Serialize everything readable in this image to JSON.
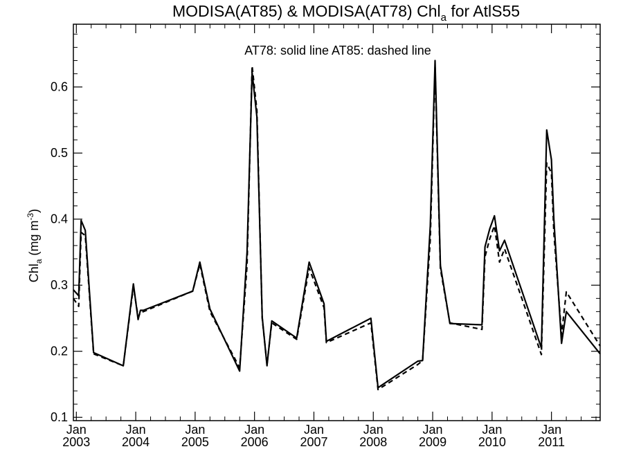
{
  "chart_data": {
    "type": "line",
    "title": {
      "prefix": "MODISA(AT85) & MODISA(AT78)  Chl",
      "subscript": "a",
      "suffix": " for AtlS55"
    },
    "ylabel": {
      "prefix": "Chl",
      "subscript": "a",
      "suffix": " (mg m",
      "superscript": "-3",
      "close": ")"
    },
    "annotation": "AT78: solid line   AT85: dashed line",
    "xlim": [
      2002.95,
      2011.82
    ],
    "ylim": [
      0.095,
      0.695
    ],
    "grid": false,
    "x_ticks": [
      {
        "value": 2003,
        "month": "Jan",
        "year": "2003"
      },
      {
        "value": 2004,
        "month": "Jan",
        "year": "2004"
      },
      {
        "value": 2005,
        "month": "Jan",
        "year": "2005"
      },
      {
        "value": 2006,
        "month": "Jan",
        "year": "2006"
      },
      {
        "value": 2007,
        "month": "Jan",
        "year": "2007"
      },
      {
        "value": 2008,
        "month": "Jan",
        "year": "2008"
      },
      {
        "value": 2009,
        "month": "Jan",
        "year": "2009"
      },
      {
        "value": 2010,
        "month": "Jan",
        "year": "2010"
      },
      {
        "value": 2011,
        "month": "Jan",
        "year": "2011"
      }
    ],
    "y_ticks": [
      {
        "value": 0.1,
        "label": "0.1"
      },
      {
        "value": 0.2,
        "label": "0.2"
      },
      {
        "value": 0.3,
        "label": "0.3"
      },
      {
        "value": 0.4,
        "label": "0.4"
      },
      {
        "value": 0.5,
        "label": "0.5"
      },
      {
        "value": 0.6,
        "label": "0.6"
      }
    ],
    "series": [
      {
        "dash": false,
        "color": "#000000",
        "points": [
          [
            2002.95,
            0.293
          ],
          [
            2003.04,
            0.284
          ],
          [
            2003.08,
            0.398
          ],
          [
            2003.15,
            0.383
          ],
          [
            2003.29,
            0.198
          ],
          [
            2003.79,
            0.178
          ],
          [
            2003.96,
            0.302
          ],
          [
            2004.04,
            0.248
          ],
          [
            2004.08,
            0.262
          ],
          [
            2004.13,
            0.262
          ],
          [
            2004.96,
            0.291
          ],
          [
            2005.08,
            0.335
          ],
          [
            2005.25,
            0.264
          ],
          [
            2005.75,
            0.17
          ],
          [
            2005.875,
            0.35
          ],
          [
            2005.96,
            0.622
          ],
          [
            2006.04,
            0.555
          ],
          [
            2006.13,
            0.252
          ],
          [
            2006.21,
            0.178
          ],
          [
            2006.29,
            0.246
          ],
          [
            2006.71,
            0.22
          ],
          [
            2006.92,
            0.335
          ],
          [
            2007.17,
            0.272
          ],
          [
            2007.21,
            0.215
          ],
          [
            2007.96,
            0.25
          ],
          [
            2008.08,
            0.145
          ],
          [
            2008.75,
            0.185
          ],
          [
            2008.83,
            0.186
          ],
          [
            2008.96,
            0.39
          ],
          [
            2009.04,
            0.64
          ],
          [
            2009.13,
            0.33
          ],
          [
            2009.29,
            0.242
          ],
          [
            2009.83,
            0.24
          ],
          [
            2009.88,
            0.358
          ],
          [
            2009.96,
            0.385
          ],
          [
            2010.04,
            0.405
          ],
          [
            2010.125,
            0.352
          ],
          [
            2010.21,
            0.368
          ],
          [
            2010.83,
            0.205
          ],
          [
            2010.92,
            0.535
          ],
          [
            2011.0,
            0.49
          ],
          [
            2011.04,
            0.4
          ],
          [
            2011.17,
            0.212
          ],
          [
            2011.25,
            0.26
          ],
          [
            2011.82,
            0.196
          ]
        ]
      },
      {
        "dash": true,
        "color": "#000000",
        "points": [
          [
            2002.95,
            0.28
          ],
          [
            2003.04,
            0.268
          ],
          [
            2003.08,
            0.38
          ],
          [
            2003.15,
            0.375
          ],
          [
            2003.29,
            0.196
          ],
          [
            2003.79,
            0.178
          ],
          [
            2003.96,
            0.298
          ],
          [
            2004.04,
            0.252
          ],
          [
            2004.08,
            0.258
          ],
          [
            2004.13,
            0.26
          ],
          [
            2004.96,
            0.291
          ],
          [
            2005.08,
            0.332
          ],
          [
            2005.25,
            0.26
          ],
          [
            2005.75,
            0.175
          ],
          [
            2005.875,
            0.33
          ],
          [
            2005.96,
            0.632
          ],
          [
            2006.04,
            0.565
          ],
          [
            2006.13,
            0.25
          ],
          [
            2006.21,
            0.18
          ],
          [
            2006.29,
            0.243
          ],
          [
            2006.71,
            0.218
          ],
          [
            2006.92,
            0.326
          ],
          [
            2007.17,
            0.266
          ],
          [
            2007.21,
            0.213
          ],
          [
            2007.96,
            0.243
          ],
          [
            2008.08,
            0.142
          ],
          [
            2008.75,
            0.18
          ],
          [
            2008.83,
            0.186
          ],
          [
            2008.96,
            0.37
          ],
          [
            2009.04,
            0.63
          ],
          [
            2009.13,
            0.325
          ],
          [
            2009.29,
            0.243
          ],
          [
            2009.83,
            0.233
          ],
          [
            2009.88,
            0.343
          ],
          [
            2009.96,
            0.37
          ],
          [
            2010.04,
            0.39
          ],
          [
            2010.125,
            0.335
          ],
          [
            2010.21,
            0.355
          ],
          [
            2010.83,
            0.195
          ],
          [
            2010.92,
            0.485
          ],
          [
            2011.0,
            0.47
          ],
          [
            2011.04,
            0.38
          ],
          [
            2011.17,
            0.225
          ],
          [
            2011.25,
            0.29
          ],
          [
            2011.82,
            0.208
          ]
        ]
      }
    ]
  }
}
